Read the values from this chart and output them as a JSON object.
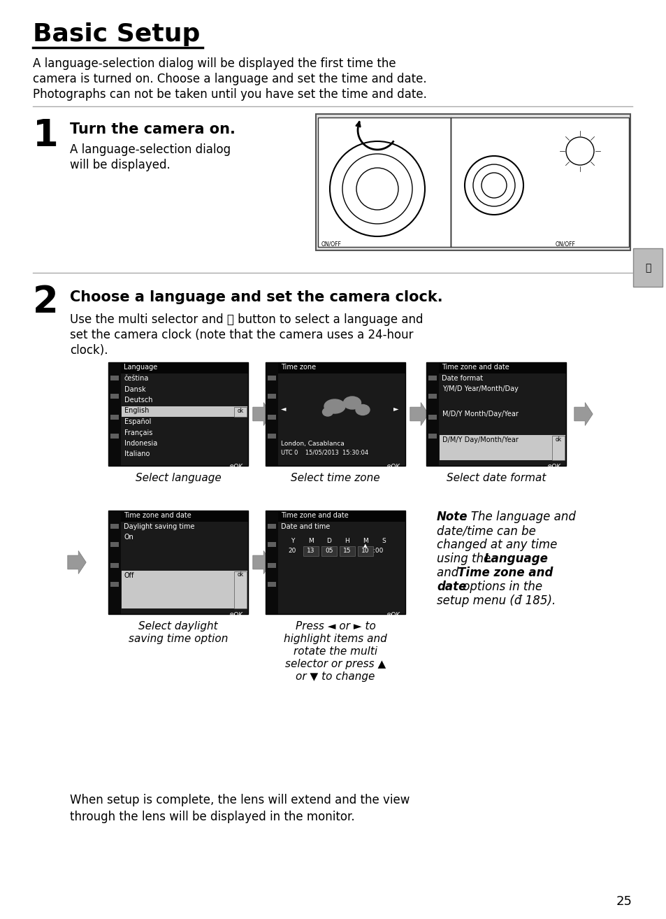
{
  "title": "Basic Setup",
  "intro_lines": [
    "A language-selection dialog will be displayed the first time the",
    "camera is turned on. Choose a language and set the time and date.",
    "Photographs can not be taken until you have set the time and date."
  ],
  "step1_head": "Turn the camera on.",
  "step1_body": "A language-selection dialog\nwill be displayed.",
  "step2_head": "Choose a language and set the camera clock.",
  "step2_body_line1": "Use the multi selector and ⒪ button to select a language and",
  "step2_body_line2": "set the camera clock (note that the camera uses a 24-hour",
  "step2_body_line3": "clock).",
  "screen1_title": "Language",
  "screen1_items": [
    "čeština",
    "Dansk",
    "Deutsch",
    "English",
    "Español",
    "Français",
    "Indonesia",
    "Italiano"
  ],
  "screen1_selected": 3,
  "screen1_caption": "Select language",
  "screen2_title": "Time zone",
  "screen2_location": "London, Casablanca",
  "screen2_utc": "UTC 0    15/05/2013  15:30:04",
  "screen2_caption": "Select time zone",
  "screen3_title": "Time zone and date",
  "screen3_subtitle": "Date format",
  "screen3_items": [
    "Y/M/D Year/Month/Day",
    "M/D/Y Month/Day/Year",
    "D/M/Y Day/Month/Year"
  ],
  "screen3_selected": 2,
  "screen3_caption": "Select date format",
  "screen4_title": "Time zone and date",
  "screen4_subtitle": "Daylight saving time",
  "screen4_items": [
    "On",
    "Off"
  ],
  "screen4_selected": 1,
  "screen4_caption_line1": "Select daylight",
  "screen4_caption_line2": "saving time option",
  "screen5_title": "Time zone and date",
  "screen5_subtitle": "Date and time",
  "screen5_caption_line1": "Press ◄ or ► to",
  "screen5_caption_line2": "highlight items and",
  "screen5_caption_line3": "rotate the multi",
  "screen5_caption_line4": "selector or press ▲",
  "screen5_caption_line5": "or ▼ to change",
  "closing_line1": "When setup is complete, the lens will extend and the view",
  "closing_line2": "through the lens will be displayed in the monitor.",
  "page_num": "25",
  "bg_color": "#ffffff",
  "screen_bg": "#111111",
  "screen_dark": "#1a1a1a",
  "screen_selected": "#c8c8c8",
  "sidebar_bg": "#0a0a0a",
  "sidebar_icon": "#606060",
  "arrow_color": "#999999",
  "divider_color": "#aaaaaa"
}
